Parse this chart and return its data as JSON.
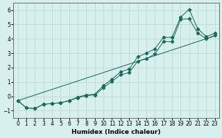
{
  "xlabel": "Humidex (Indice chaleur)",
  "background_color": "#d8f0ed",
  "grid_color": "#c0dcd8",
  "line_color": "#1a6b5a",
  "xlim": [
    -0.5,
    23.5
  ],
  "ylim": [
    -1.5,
    6.5
  ],
  "xticks": [
    0,
    1,
    2,
    3,
    4,
    5,
    6,
    7,
    8,
    9,
    10,
    11,
    12,
    13,
    14,
    15,
    16,
    17,
    18,
    19,
    20,
    21,
    22,
    23
  ],
  "yticks": [
    -1,
    0,
    1,
    2,
    3,
    4,
    5,
    6
  ],
  "series_straight": [
    [
      0,
      -0.3
    ],
    [
      23,
      4.2
    ]
  ],
  "series_mid": [
    [
      0,
      -0.3
    ],
    [
      1,
      -0.8
    ],
    [
      2,
      -0.85
    ],
    [
      3,
      -0.55
    ],
    [
      4,
      -0.5
    ],
    [
      5,
      -0.45
    ],
    [
      6,
      -0.3
    ],
    [
      7,
      -0.1
    ],
    [
      8,
      0.05
    ],
    [
      9,
      0.1
    ],
    [
      10,
      0.6
    ],
    [
      11,
      1.05
    ],
    [
      12,
      1.5
    ],
    [
      13,
      1.65
    ],
    [
      14,
      2.45
    ],
    [
      15,
      2.6
    ],
    [
      16,
      2.95
    ],
    [
      17,
      3.8
    ],
    [
      18,
      3.8
    ],
    [
      19,
      5.35
    ],
    [
      20,
      5.4
    ],
    [
      21,
      4.4
    ],
    [
      22,
      4.0
    ],
    [
      23,
      4.25
    ]
  ],
  "series_top": [
    [
      0,
      -0.3
    ],
    [
      1,
      -0.8
    ],
    [
      2,
      -0.85
    ],
    [
      3,
      -0.55
    ],
    [
      4,
      -0.5
    ],
    [
      5,
      -0.45
    ],
    [
      6,
      -0.3
    ],
    [
      7,
      -0.05
    ],
    [
      8,
      0.1
    ],
    [
      9,
      0.15
    ],
    [
      10,
      0.75
    ],
    [
      11,
      1.2
    ],
    [
      12,
      1.7
    ],
    [
      13,
      1.9
    ],
    [
      14,
      2.75
    ],
    [
      15,
      3.0
    ],
    [
      16,
      3.3
    ],
    [
      17,
      4.1
    ],
    [
      18,
      4.1
    ],
    [
      19,
      5.5
    ],
    [
      20,
      6.05
    ],
    [
      21,
      4.7
    ],
    [
      22,
      4.15
    ],
    [
      23,
      4.4
    ]
  ]
}
